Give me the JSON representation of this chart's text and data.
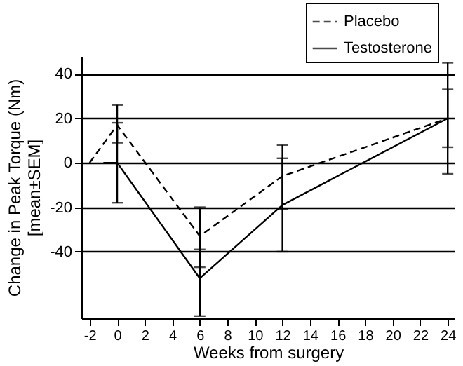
{
  "chart_data": {
    "type": "line",
    "xlabel": "Weeks from surgery",
    "ylabel": "Change in Peak Torque (Nm)\n[mean±SEM]",
    "xlim": [
      -2.6,
      24.5
    ],
    "xticks": [
      -2,
      0,
      2,
      4,
      6,
      8,
      10,
      12,
      14,
      16,
      18,
      20,
      22,
      24
    ],
    "ylim": [
      -70,
      48
    ],
    "yticks": [
      -40,
      -20,
      0,
      20,
      40
    ],
    "grid": "y",
    "legend": "top right",
    "marker": "none",
    "series": [
      {
        "name": "Placebo",
        "color": "#000000",
        "line_style": "dashed",
        "x": [
          -2,
          0,
          6,
          12,
          24
        ],
        "values": [
          0,
          17,
          -33,
          -6,
          20
        ],
        "errors": [
          null,
          [
            9,
            26
          ],
          [
            -47,
            -20
          ],
          [
            -21,
            8
          ],
          [
            7,
            33
          ]
        ]
      },
      {
        "name": "Testosterone",
        "color": "#000000",
        "line_style": "solid",
        "x": [
          -1,
          0,
          6,
          12,
          24
        ],
        "values": [
          0,
          0,
          -52,
          -19,
          20
        ],
        "errors": [
          null,
          [
            -18,
            18
          ],
          [
            -69,
            -39
          ],
          [
            -40,
            2
          ],
          [
            -5,
            45
          ]
        ]
      }
    ]
  }
}
